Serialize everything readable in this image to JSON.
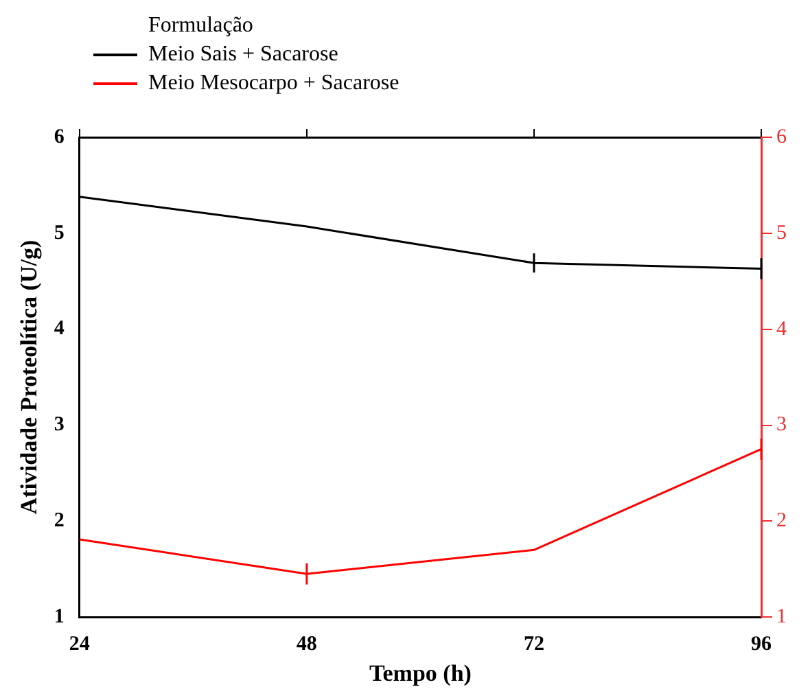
{
  "chart_data": {
    "type": "line",
    "xlabel": "Tempo (h)",
    "ylabel": "Atividade Proteolítica (U/g)",
    "legend_title": "Formulação",
    "legend": "top left",
    "x": [
      24,
      48,
      72,
      96
    ],
    "xlim": [
      24,
      96
    ],
    "xticks": [
      24,
      48,
      72,
      96
    ],
    "ylim": [
      1,
      6
    ],
    "yticks": [
      1,
      2,
      3,
      4,
      5,
      6
    ],
    "y2lim": [
      1,
      6
    ],
    "y2ticks": [
      1,
      2,
      3,
      4,
      5,
      6
    ],
    "grid": false,
    "marker": "none",
    "line_style": "solid",
    "series": [
      {
        "name": "Meio Sais + Sacarose",
        "color": "#000000",
        "values": [
          5.38,
          5.07,
          4.69,
          4.63
        ],
        "errors": [
          null,
          null,
          0.1,
          0.11
        ]
      },
      {
        "name": "Meio Mesocarpo + Sacarose",
        "color": "#ff0000",
        "axis": "y2",
        "values": [
          1.81,
          1.45,
          1.7,
          2.75
        ],
        "errors": [
          null,
          0.11,
          null,
          0.11
        ]
      }
    ]
  }
}
